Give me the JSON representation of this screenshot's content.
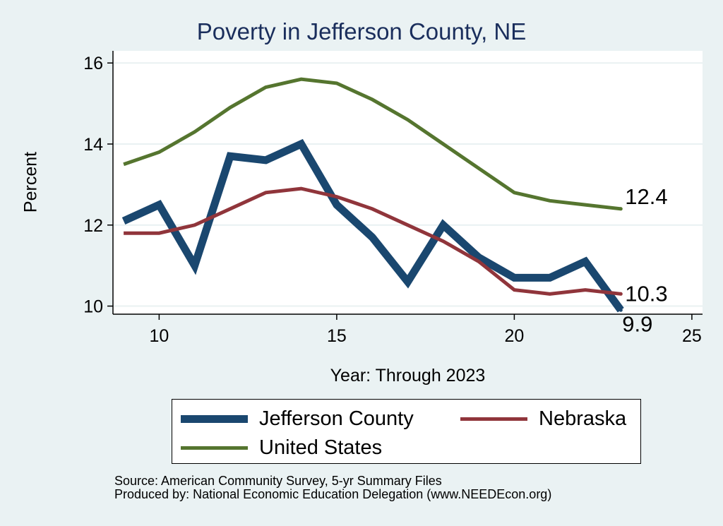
{
  "chart_data": {
    "type": "line",
    "title": "Poverty in Jefferson County, NE",
    "xlabel": "Year: Through 2023",
    "ylabel": "Percent",
    "xlim": [
      8.7,
      25.3
    ],
    "ylim": [
      9.8,
      16.3
    ],
    "xticks": [
      10,
      15,
      20,
      25
    ],
    "yticks": [
      10,
      12,
      14,
      16
    ],
    "grid": true,
    "legend_position": "bottom",
    "x": [
      9,
      10,
      11,
      12,
      13,
      14,
      15,
      16,
      17,
      18,
      19,
      20,
      21,
      22,
      23
    ],
    "series": [
      {
        "name": "Jefferson County",
        "color": "#1a476f",
        "values": [
          12.1,
          12.5,
          11.0,
          13.7,
          13.6,
          14.0,
          12.5,
          11.7,
          10.6,
          12.0,
          11.2,
          10.7,
          10.7,
          11.1,
          9.9
        ],
        "end_label": "9.9"
      },
      {
        "name": "Nebraska",
        "color": "#90353b",
        "values": [
          11.8,
          11.8,
          12.0,
          12.4,
          12.8,
          12.9,
          12.7,
          12.4,
          12.0,
          11.6,
          11.1,
          10.4,
          10.3,
          10.4,
          10.3
        ],
        "end_label": "10.3"
      },
      {
        "name": "United States",
        "color": "#55752f",
        "values": [
          13.5,
          13.8,
          14.3,
          14.9,
          15.4,
          15.6,
          15.5,
          15.1,
          14.6,
          14.0,
          13.4,
          12.8,
          12.6,
          12.5,
          12.4
        ],
        "end_label": "12.4"
      }
    ]
  },
  "source": {
    "line1": "Source: American Community Survey, 5-yr Summary Files",
    "line2": "Produced by: National Economic Education Delegation (www.NEEDEcon.org)"
  }
}
